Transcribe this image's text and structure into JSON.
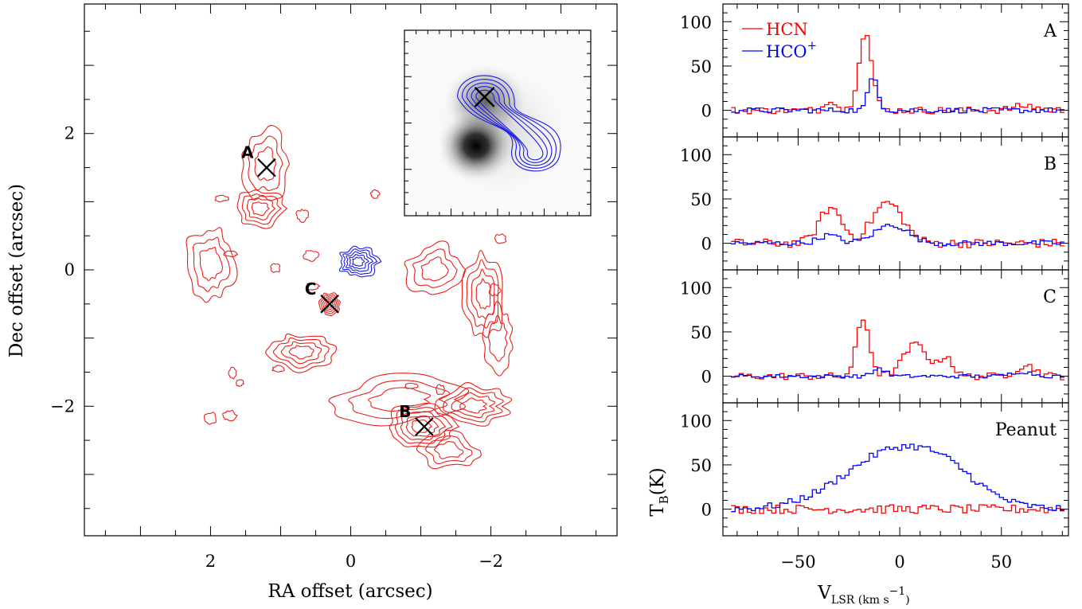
{
  "chart_data": [
    {
      "type": "contour",
      "xlabel": "RA offset (arcsec)",
      "ylabel": "Dec offset (arcsec)",
      "xlim": [
        3.8,
        -3.8
      ],
      "ylim": [
        -3.9,
        3.9
      ],
      "x_ticks": [
        {
          "v": 2,
          "label": "2"
        },
        {
          "v": 0,
          "label": "0"
        },
        {
          "v": -2,
          "label": "−2"
        }
      ],
      "y_ticks": [
        {
          "v": 2,
          "label": "2"
        },
        {
          "v": 0,
          "label": "0"
        },
        {
          "v": -2,
          "label": "−2"
        }
      ],
      "markers": [
        {
          "label": "A",
          "x": 1.2,
          "y": 1.5
        },
        {
          "label": "B",
          "x": -1.05,
          "y": -2.3
        },
        {
          "label": "C",
          "x": 0.3,
          "y": -0.5
        }
      ],
      "red_emission_regions": [
        {
          "x": 1.22,
          "y": 1.55,
          "rx": 0.32,
          "ry": 0.5,
          "levels": 3
        },
        {
          "x": 1.3,
          "y": 0.9,
          "rx": 0.35,
          "ry": 0.25,
          "levels": 4
        },
        {
          "x": 2.0,
          "y": 0.1,
          "rx": 0.35,
          "ry": 0.55,
          "levels": 3
        },
        {
          "x": 0.3,
          "y": -0.5,
          "rx": 0.15,
          "ry": 0.15,
          "levels": 5
        },
        {
          "x": 0.7,
          "y": -1.2,
          "rx": 0.45,
          "ry": 0.25,
          "levels": 4
        },
        {
          "x": -0.7,
          "y": -1.9,
          "rx": 0.9,
          "ry": 0.35,
          "levels": 3
        },
        {
          "x": -1.0,
          "y": -2.3,
          "rx": 0.5,
          "ry": 0.3,
          "levels": 5
        },
        {
          "x": -1.75,
          "y": -2.0,
          "rx": 0.5,
          "ry": 0.3,
          "levels": 4
        },
        {
          "x": -1.9,
          "y": -0.35,
          "rx": 0.3,
          "ry": 0.6,
          "levels": 4
        },
        {
          "x": -1.2,
          "y": 0.0,
          "rx": 0.4,
          "ry": 0.35,
          "levels": 3
        },
        {
          "x": -2.1,
          "y": -1.0,
          "rx": 0.2,
          "ry": 0.45,
          "levels": 2
        },
        {
          "x": -1.4,
          "y": -2.65,
          "rx": 0.4,
          "ry": 0.25,
          "levels": 3
        }
      ],
      "blue_emission_regions": [
        {
          "x": -0.1,
          "y": 0.12,
          "rx": 0.28,
          "ry": 0.22,
          "levels": 5
        }
      ],
      "inset": {
        "kind": "zoom of central source",
        "greyscale_peaks": [
          {
            "x": 0.3,
            "y": 0.28,
            "brightness": 1.0
          },
          {
            "x": 0.35,
            "y": 0.62,
            "brightness": 0.55
          }
        ],
        "blue_contour_peak": {
          "x": 0.43,
          "y": 0.64
        },
        "blue_contour_lobe": {
          "x": 0.7,
          "y": 0.33
        },
        "marker": {
          "x": 0.43,
          "y": 0.64
        }
      }
    },
    {
      "type": "line",
      "subtype": "step-spectra",
      "xlabel_main": "V",
      "xlabel_sub": "LSR (km s",
      "xlabel_exp": "−1",
      "xlabel_close": ")",
      "ylabel_main": "T",
      "ylabel_sub": "B",
      "ylabel_tail": "(K)",
      "xlim": [
        -87,
        83
      ],
      "ylim": [
        -30,
        120
      ],
      "x_ticks": [
        {
          "v": -50,
          "label": "−50"
        },
        {
          "v": 0,
          "label": "0"
        },
        {
          "v": 50,
          "label": "50"
        }
      ],
      "y_ticks": [
        {
          "v": 0,
          "label": "0"
        },
        {
          "v": 50,
          "label": "50"
        },
        {
          "v": 100,
          "label": "100"
        }
      ],
      "legend": {
        "position": "top-left",
        "entries": [
          {
            "name": "HCN",
            "color": "#ff0000"
          },
          {
            "name": "HCO",
            "sup": "+",
            "color": "#0000ff"
          }
        ]
      },
      "panels": [
        {
          "label": "A",
          "series": [
            {
              "name": "HCN",
              "color": "#ff0000",
              "components": [
                {
                  "c": -34,
                  "w": 2.5,
                  "a": 13
                },
                {
                  "c": -17,
                  "w": 3.2,
                  "a": 88
                },
                {
                  "c": 62,
                  "w": 6,
                  "a": 5
                }
              ],
              "noise": 4
            },
            {
              "name": "HCO+",
              "color": "#0000ff",
              "components": [
                {
                  "c": -13,
                  "w": 2.4,
                  "a": 38
                }
              ],
              "noise": 3
            }
          ]
        },
        {
          "label": "B",
          "series": [
            {
              "name": "HCN",
              "color": "#ff0000",
              "components": [
                {
                  "c": -34,
                  "w": 5.5,
                  "a": 40
                },
                {
                  "c": -6,
                  "w": 7.5,
                  "a": 46
                }
              ],
              "noise": 5
            },
            {
              "name": "HCO+",
              "color": "#0000ff",
              "components": [
                {
                  "c": -35,
                  "w": 5,
                  "a": 9
                },
                {
                  "c": -4,
                  "w": 8,
                  "a": 21
                }
              ],
              "noise": 3
            }
          ]
        },
        {
          "label": "C",
          "series": [
            {
              "name": "HCN",
              "color": "#ff0000",
              "components": [
                {
                  "c": -18,
                  "w": 3.2,
                  "a": 64
                },
                {
                  "c": 8,
                  "w": 6,
                  "a": 36
                },
                {
                  "c": 23,
                  "w": 3,
                  "a": 22
                },
                {
                  "c": 62,
                  "w": 5,
                  "a": 12
                }
              ],
              "noise": 4
            },
            {
              "name": "HCO+",
              "color": "#0000ff",
              "components": [
                {
                  "c": -10,
                  "w": 3,
                  "a": 9
                },
                {
                  "c": 60,
                  "w": 5,
                  "a": 5
                }
              ],
              "noise": 2
            }
          ]
        },
        {
          "label": "Peanut",
          "series": [
            {
              "name": "HCN",
              "color": "#ff0000",
              "components": [],
              "noise": 5
            },
            {
              "name": "HCO+",
              "color": "#0000ff",
              "components": [
                {
                  "c": 0,
                  "w": 26,
                  "a": 68
                },
                {
                  "c": 25,
                  "w": 14,
                  "a": 12
                }
              ],
              "noise": 4
            }
          ]
        }
      ]
    }
  ]
}
